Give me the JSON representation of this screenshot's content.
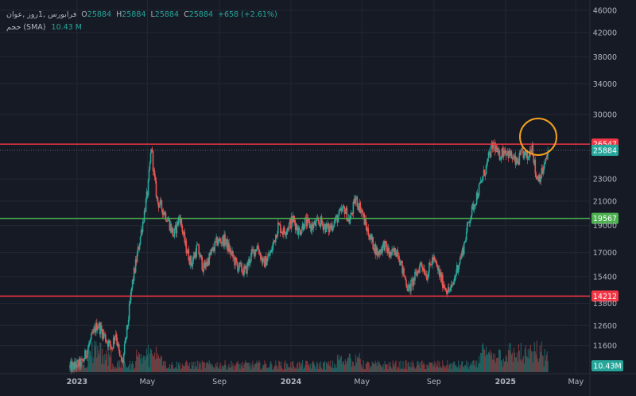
{
  "legend": {
    "symbol": "فرابورس ,1روز ,عوان",
    "open_label": "O",
    "open": "25884",
    "high_label": "H",
    "high": "25884",
    "low_label": "L",
    "low": "25884",
    "close_label": "C",
    "close": "25884",
    "change": "+658 (+2.61%)",
    "volume_label": "حجم (SMA)",
    "volume_value": "10.43 M"
  },
  "colors": {
    "background": "#161a25",
    "grid": "#232733",
    "up": "#26a69a",
    "down": "#ef5350",
    "red_line": "#f23645",
    "green_line": "#4caf50",
    "circle": "#f0a020",
    "axis_text": "#b2b5be"
  },
  "chart_data": {
    "type": "candlestick",
    "price_scale": "log",
    "ylim": [
      10400,
      46000
    ],
    "y_ticks": [
      46000,
      42000,
      38000,
      34000,
      30000,
      23000,
      21000,
      19000,
      17000,
      15400,
      13800,
      12600,
      11600
    ],
    "x_ticks": [
      "2023",
      "May",
      "Sep",
      "2024",
      "May",
      "Sep",
      "2025",
      "May"
    ],
    "horizontal_levels": [
      {
        "value": 26547,
        "label": "26547",
        "color": "#f23645"
      },
      {
        "value": 19567,
        "label": "19567",
        "color": "#4caf50"
      },
      {
        "value": 14212,
        "label": "14212",
        "color": "#f23645"
      }
    ],
    "last_price": {
      "value": 25884,
      "label": "25884"
    },
    "volume_badge": "10.43M",
    "trend_points": [
      [
        "2022-12-20",
        10600
      ],
      [
        "2023-01-10",
        10800
      ],
      [
        "2023-01-25",
        11900
      ],
      [
        "2023-02-05",
        12700
      ],
      [
        "2023-02-20",
        11900
      ],
      [
        "2023-03-01",
        11500
      ],
      [
        "2023-03-08",
        12300
      ],
      [
        "2023-03-15",
        11000
      ],
      [
        "2023-03-20",
        10800
      ],
      [
        "2023-03-28",
        12500
      ],
      [
        "2023-04-05",
        14900
      ],
      [
        "2023-04-15",
        17100
      ],
      [
        "2023-04-25",
        19800
      ],
      [
        "2023-05-02",
        22000
      ],
      [
        "2023-05-08",
        26400
      ],
      [
        "2023-05-12",
        23500
      ],
      [
        "2023-05-18",
        21000
      ],
      [
        "2023-05-25",
        20500
      ],
      [
        "2023-06-05",
        19500
      ],
      [
        "2023-06-15",
        18200
      ],
      [
        "2023-06-25",
        19800
      ],
      [
        "2023-07-05",
        17500
      ],
      [
        "2023-07-15",
        16200
      ],
      [
        "2023-07-25",
        17400
      ],
      [
        "2023-08-05",
        15900
      ],
      [
        "2023-08-15",
        16700
      ],
      [
        "2023-08-28",
        17800
      ],
      [
        "2023-09-10",
        17900
      ],
      [
        "2023-09-20",
        17000
      ],
      [
        "2023-10-01",
        16100
      ],
      [
        "2023-10-15",
        15700
      ],
      [
        "2023-10-25",
        16800
      ],
      [
        "2023-11-05",
        17500
      ],
      [
        "2023-11-15",
        16200
      ],
      [
        "2023-11-28",
        17000
      ],
      [
        "2023-12-10",
        19000
      ],
      [
        "2023-12-20",
        18500
      ],
      [
        "2024-01-05",
        19500
      ],
      [
        "2024-01-15",
        18500
      ],
      [
        "2024-01-25",
        19300
      ],
      [
        "2024-02-05",
        18900
      ],
      [
        "2024-02-20",
        19300
      ],
      [
        "2024-03-05",
        18700
      ],
      [
        "2024-03-20",
        19600
      ],
      [
        "2024-04-01",
        20400
      ],
      [
        "2024-04-10",
        19300
      ],
      [
        "2024-04-20",
        21200
      ],
      [
        "2024-04-30",
        20300
      ],
      [
        "2024-05-08",
        18900
      ],
      [
        "2024-05-18",
        17800
      ],
      [
        "2024-05-28",
        16900
      ],
      [
        "2024-06-08",
        17600
      ],
      [
        "2024-06-18",
        16800
      ],
      [
        "2024-07-01",
        17200
      ],
      [
        "2024-07-10",
        15700
      ],
      [
        "2024-07-20",
        14600
      ],
      [
        "2024-07-30",
        15300
      ],
      [
        "2024-08-10",
        16300
      ],
      [
        "2024-08-20",
        15500
      ],
      [
        "2024-08-30",
        16600
      ],
      [
        "2024-09-08",
        15800
      ],
      [
        "2024-09-15",
        15100
      ],
      [
        "2024-09-25",
        14500
      ],
      [
        "2024-10-02",
        14700
      ],
      [
        "2024-10-10",
        15900
      ],
      [
        "2024-10-20",
        17100
      ],
      [
        "2024-10-30",
        19300
      ],
      [
        "2024-11-10",
        21000
      ],
      [
        "2024-11-20",
        22600
      ],
      [
        "2024-11-30",
        24300
      ],
      [
        "2024-12-05",
        25500
      ],
      [
        "2024-12-12",
        26600
      ],
      [
        "2024-12-20",
        25200
      ],
      [
        "2024-12-30",
        26000
      ],
      [
        "2025-01-10",
        25300
      ],
      [
        "2025-01-20",
        24500
      ],
      [
        "2025-01-30",
        25600
      ],
      [
        "2025-02-08",
        25000
      ],
      [
        "2025-02-15",
        26700
      ],
      [
        "2025-02-22",
        23200
      ],
      [
        "2025-03-02",
        23300
      ],
      [
        "2025-03-10",
        24500
      ],
      [
        "2025-03-15",
        25900
      ]
    ]
  }
}
